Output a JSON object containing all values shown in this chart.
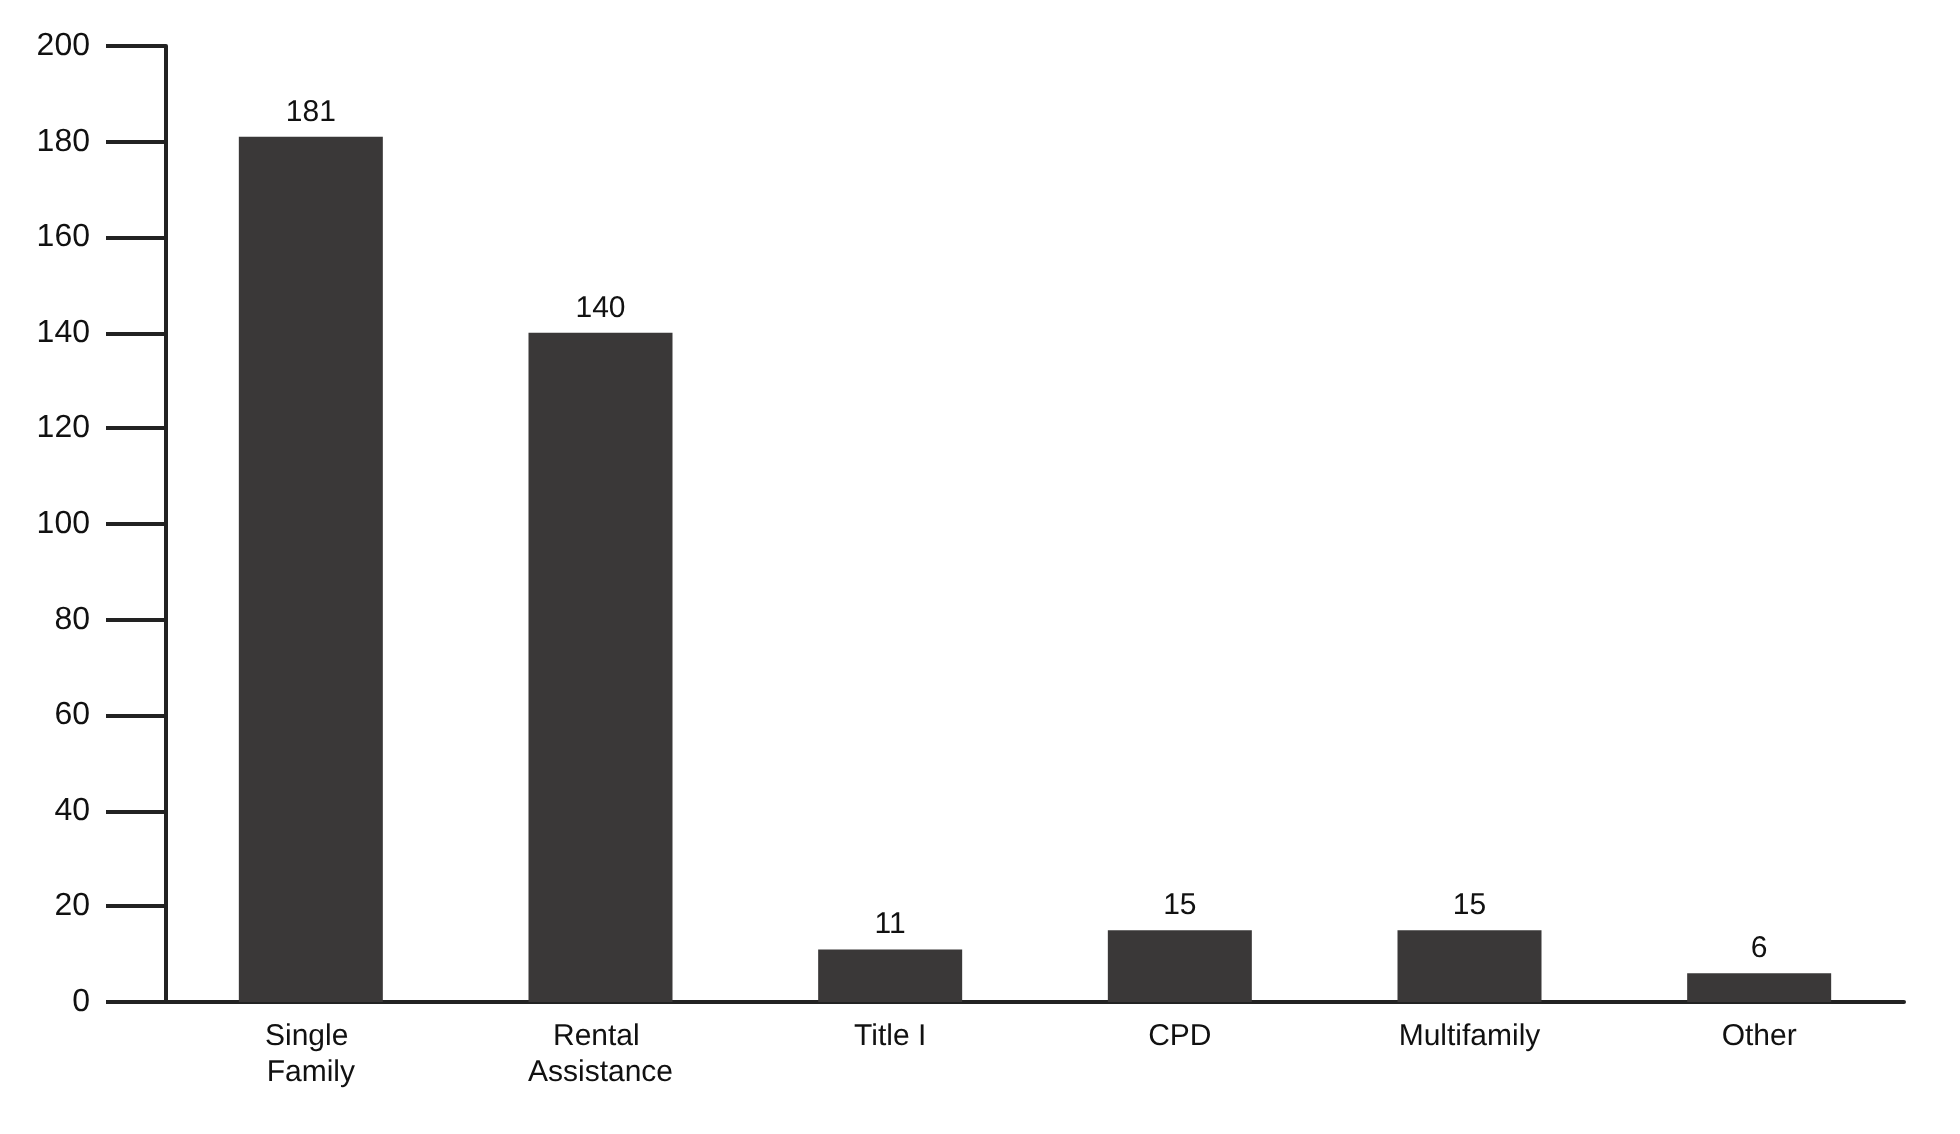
{
  "chart_data": {
    "type": "bar",
    "categories": [
      "Single Family",
      "Rental Assistance",
      "Title I",
      "CPD",
      "Multifamily",
      "Other"
    ],
    "values": [
      181,
      140,
      11,
      15,
      15,
      6
    ],
    "color": "#3a3838",
    "ylim": [
      0,
      200
    ],
    "yticks": [
      0,
      20,
      40,
      60,
      80,
      100,
      120,
      140,
      160,
      180,
      200
    ],
    "grid": false,
    "data_labels": true
  }
}
